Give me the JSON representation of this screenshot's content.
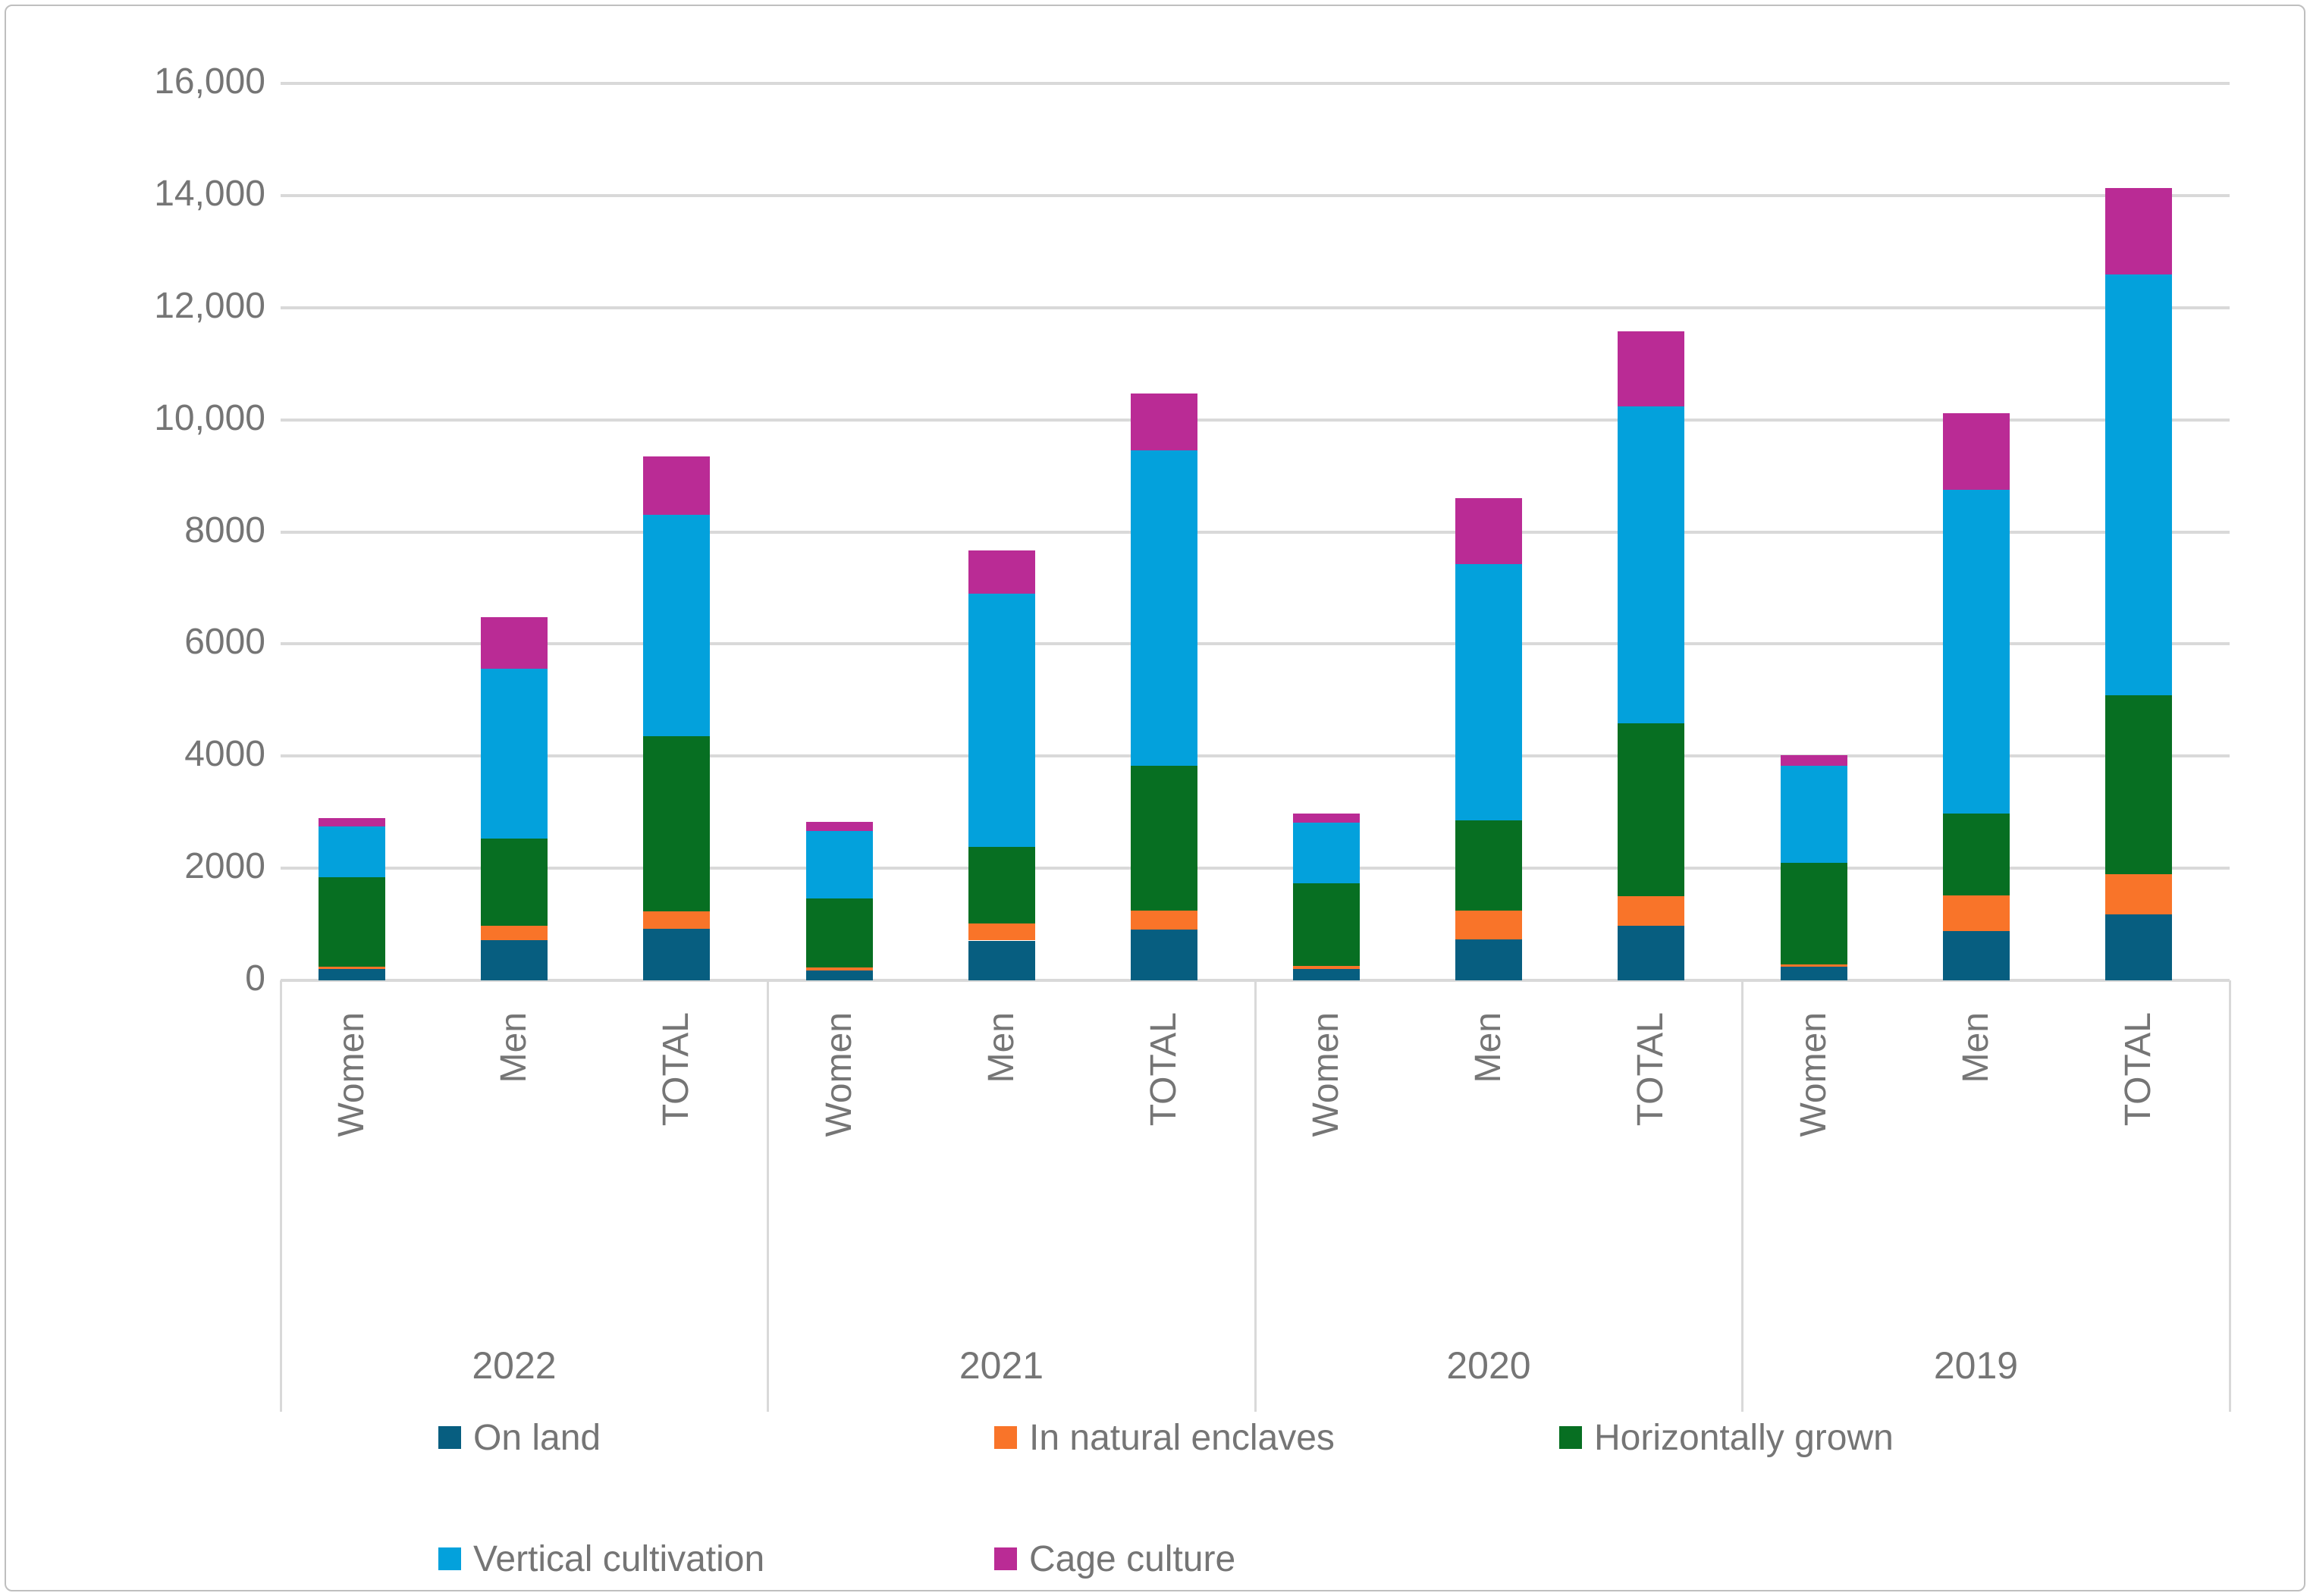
{
  "chart_data": {
    "type": "bar",
    "stacked": true,
    "title": "",
    "xlabel": "",
    "ylabel": "",
    "ylim": [
      0,
      16000
    ],
    "ytick_interval": 2000,
    "ytick_labels": [
      "0",
      "2000",
      "4000",
      "6000",
      "8000",
      "10,000",
      "12,000",
      "14,000",
      "16,000"
    ],
    "grid": true,
    "legend_position": "bottom",
    "group_labels": [
      "2022",
      "2021",
      "2020",
      "2019"
    ],
    "category_labels": [
      "Women",
      "Men",
      "TOTAL"
    ],
    "bar_order_note": "values arrays hold 12 bars ordered: 2022 Women, 2022 Men, 2022 TOTAL, 2021 Women, 2021 Men, 2021 TOTAL, 2020 Women, 2020 Men, 2020 TOTAL, 2019 Women, 2019 Men, 2019 TOTAL",
    "series": [
      {
        "name": "On land",
        "color": "#075E80",
        "values": [
          200,
          720,
          920,
          180,
          710,
          910,
          200,
          730,
          980,
          250,
          880,
          1180
        ]
      },
      {
        "name": "In natural enclaves",
        "color": "#F97429",
        "values": [
          50,
          260,
          310,
          45,
          300,
          340,
          60,
          520,
          520,
          40,
          630,
          710
        ]
      },
      {
        "name": "Horizontally grown",
        "color": "#076F22",
        "values": [
          1590,
          1550,
          3130,
          1235,
          1370,
          2580,
          1470,
          1610,
          3090,
          1810,
          1460,
          3190
        ]
      },
      {
        "name": "Vertical cultivation",
        "color": "#03A1DC",
        "values": [
          900,
          3030,
          3940,
          1210,
          4520,
          5630,
          1080,
          4560,
          5650,
          1730,
          5780,
          7510
        ]
      },
      {
        "name": "Cage culture",
        "color": "#BA2B95",
        "values": [
          150,
          920,
          1050,
          150,
          770,
          1010,
          160,
          1180,
          1340,
          190,
          1370,
          1550
        ]
      }
    ],
    "bar_totals": [
      2890,
      6480,
      9350,
      2820,
      7670,
      10470,
      2970,
      8600,
      11580,
      4020,
      10120,
      14140
    ]
  },
  "colors": {
    "gridline": "#D9D9D9",
    "axis_text": "#757575",
    "background": "#FFFFFF",
    "border": "#BFBFBF"
  }
}
